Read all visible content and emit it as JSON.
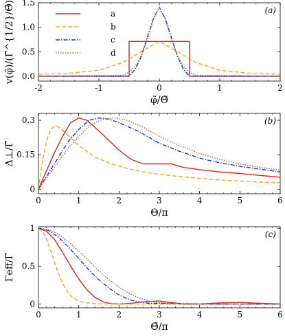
{
  "colors": {
    "a": "#e0201b",
    "b": "#f5a623",
    "c": "#1f2fd6",
    "d": "#a0642a"
  },
  "chart_data": [
    {
      "panel_label": "(a)",
      "type": "line",
      "xlabel": "φ̃/Θ̃",
      "ylabel": "v(φ̃)/(Γ̃^{1/2}/Θ̃)",
      "xlim": [
        -2,
        2
      ],
      "ylim": [
        -0.1,
        1.5
      ],
      "xticks": [
        "-2",
        "-1",
        "0",
        "1",
        "2"
      ],
      "yticks": [
        "0.0",
        "0.5",
        "1.0",
        "1.5"
      ],
      "legend": {
        "placement": "top-left",
        "entries": [
          "a",
          "b",
          "c",
          "d"
        ]
      },
      "series": [
        {
          "name": "a",
          "x": [
            -2,
            -0.5,
            -0.5,
            0.5,
            0.5,
            2
          ],
          "y": [
            0,
            0,
            0.71,
            0.71,
            0,
            0
          ]
        },
        {
          "name": "b",
          "x": [
            -2,
            -1.5,
            -1,
            -0.6,
            -0.3,
            0,
            0.3,
            0.6,
            1,
            1.5,
            2
          ],
          "y": [
            0.04,
            0.06,
            0.12,
            0.28,
            0.5,
            0.71,
            0.5,
            0.28,
            0.12,
            0.06,
            0.04
          ]
        },
        {
          "name": "c",
          "x": [
            -2,
            -0.5,
            -0.4,
            -0.3,
            -0.2,
            -0.1,
            0,
            0.1,
            0.2,
            0.3,
            0.4,
            0.5,
            2
          ],
          "y": [
            0,
            0,
            0.14,
            0.4,
            0.79,
            1.17,
            1.41,
            1.17,
            0.79,
            0.4,
            0.14,
            0,
            0
          ]
        },
        {
          "name": "d",
          "x": [
            -2,
            -0.6,
            -0.5,
            -0.4,
            -0.3,
            -0.2,
            -0.1,
            0,
            0.1,
            0.2,
            0.3,
            0.4,
            0.5,
            0.6,
            2
          ],
          "y": [
            0,
            0.02,
            0.08,
            0.2,
            0.42,
            0.75,
            1.15,
            1.41,
            1.15,
            0.75,
            0.42,
            0.2,
            0.08,
            0.02,
            0
          ]
        }
      ]
    },
    {
      "panel_label": "(b)",
      "type": "line",
      "xlabel": "Θ/π",
      "ylabel": "Δ⊥/Γ̃",
      "xlim": [
        0,
        6
      ],
      "ylim": [
        -0.02,
        0.33
      ],
      "xticks": [
        "0",
        "1",
        "2",
        "3",
        "4",
        "5",
        "6"
      ],
      "yticks": [
        "0",
        "0.15",
        "0.3"
      ],
      "series": [
        {
          "name": "a",
          "x": [
            0,
            0.2,
            0.4,
            0.6,
            0.8,
            1.0,
            1.2,
            1.4,
            1.7,
            2.0,
            2.3,
            2.6,
            3.0,
            3.3,
            3.6,
            4.0,
            4.5,
            5.0,
            5.5,
            6.0
          ],
          "y": [
            0,
            0.08,
            0.16,
            0.23,
            0.29,
            0.31,
            0.3,
            0.27,
            0.22,
            0.17,
            0.13,
            0.11,
            0.11,
            0.11,
            0.095,
            0.085,
            0.075,
            0.068,
            0.06,
            0.052
          ]
        },
        {
          "name": "b",
          "x": [
            0,
            0.1,
            0.2,
            0.3,
            0.4,
            0.5,
            0.7,
            1.0,
            1.4,
            1.8,
            2.2,
            2.6,
            3.0,
            3.5,
            4.0,
            4.5,
            5.0,
            5.5,
            6.0
          ],
          "y": [
            0,
            0.12,
            0.21,
            0.26,
            0.275,
            0.27,
            0.24,
            0.19,
            0.14,
            0.11,
            0.09,
            0.075,
            0.065,
            0.055,
            0.047,
            0.04,
            0.035,
            0.031,
            0.028
          ]
        },
        {
          "name": "c",
          "x": [
            0,
            0.25,
            0.5,
            0.75,
            1.0,
            1.25,
            1.5,
            1.75,
            2.0,
            2.5,
            3.0,
            3.5,
            4.0,
            4.5,
            5.0,
            5.5,
            6.0
          ],
          "y": [
            0,
            0.07,
            0.14,
            0.21,
            0.26,
            0.3,
            0.31,
            0.305,
            0.29,
            0.25,
            0.2,
            0.165,
            0.135,
            0.115,
            0.1,
            0.087,
            0.075
          ]
        },
        {
          "name": "d",
          "x": [
            0,
            0.25,
            0.5,
            0.75,
            1.0,
            1.3,
            1.6,
            1.9,
            2.2,
            2.6,
            3.0,
            3.5,
            4.0,
            4.5,
            5.0,
            5.5,
            6.0
          ],
          "y": [
            0,
            0.06,
            0.12,
            0.18,
            0.23,
            0.28,
            0.305,
            0.31,
            0.3,
            0.27,
            0.23,
            0.19,
            0.155,
            0.13,
            0.11,
            0.095,
            0.083
          ]
        }
      ]
    },
    {
      "panel_label": "(c)",
      "type": "line",
      "xlabel": "Θ̃/π",
      "ylabel": "Γeff/Γ̃",
      "xlim": [
        0,
        6
      ],
      "ylim": [
        -0.05,
        1.02
      ],
      "xticks": [
        "0",
        "1",
        "2",
        "3",
        "4",
        "5",
        "6"
      ],
      "yticks": [
        "0",
        "0.5",
        "1"
      ],
      "series": [
        {
          "name": "a",
          "x": [
            0,
            0.2,
            0.4,
            0.6,
            0.8,
            1.0,
            1.2,
            1.4,
            1.6,
            1.8,
            2.0,
            2.3,
            2.6,
            3.0,
            3.3,
            3.6,
            4.0,
            4.5,
            5.0,
            5.5,
            6.0
          ],
          "y": [
            1,
            0.96,
            0.85,
            0.68,
            0.5,
            0.33,
            0.19,
            0.09,
            0.03,
            0.004,
            0,
            0.01,
            0.03,
            0.04,
            0.02,
            0,
            0,
            0.015,
            0.022,
            0.01,
            0
          ]
        },
        {
          "name": "b",
          "x": [
            0,
            0.1,
            0.2,
            0.3,
            0.4,
            0.5,
            0.6,
            0.7,
            0.8,
            0.9,
            1.0,
            1.2,
            1.4,
            1.6,
            1.8,
            2.0,
            6.0
          ],
          "y": [
            1,
            0.96,
            0.86,
            0.71,
            0.55,
            0.4,
            0.27,
            0.18,
            0.11,
            0.07,
            0.04,
            0.015,
            0.005,
            0.002,
            0,
            0,
            0
          ]
        },
        {
          "name": "c",
          "x": [
            0,
            0.25,
            0.5,
            0.75,
            1.0,
            1.25,
            1.5,
            1.75,
            2.0,
            2.25,
            2.5,
            2.75,
            3.0,
            3.5,
            4.0,
            6.0
          ],
          "y": [
            1,
            0.97,
            0.88,
            0.75,
            0.6,
            0.45,
            0.32,
            0.21,
            0.12,
            0.06,
            0.025,
            0.01,
            0.01,
            0.005,
            0,
            0
          ]
        },
        {
          "name": "d",
          "x": [
            0,
            0.25,
            0.5,
            0.75,
            1.0,
            1.25,
            1.5,
            1.75,
            2.0,
            2.25,
            2.5,
            2.75,
            3.0,
            3.5,
            4.0,
            6.0
          ],
          "y": [
            1,
            0.98,
            0.92,
            0.82,
            0.7,
            0.57,
            0.44,
            0.32,
            0.22,
            0.14,
            0.08,
            0.04,
            0.02,
            0.005,
            0,
            0
          ]
        }
      ]
    }
  ]
}
